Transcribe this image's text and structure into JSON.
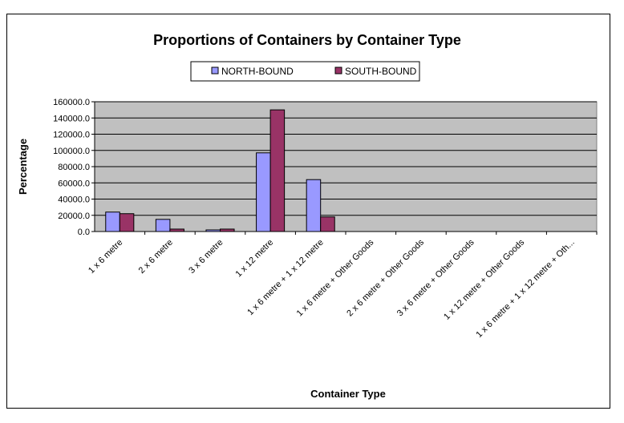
{
  "chart_data": {
    "type": "bar",
    "title": "Proportions of Containers by Container Type",
    "xlabel": "Container Type",
    "ylabel": "Percentage",
    "ylim": [
      0,
      160000
    ],
    "yticks": [
      "0.0",
      "20000.0",
      "40000.0",
      "60000.0",
      "80000.0",
      "100000.0",
      "120000.0",
      "140000.0",
      "160000.0"
    ],
    "categories": [
      "1 x 6 metre",
      "2 x 6 metre",
      "3 x 6 metre",
      "1 x 12 metre",
      "1 x 6 metre + 1 x 12 metre",
      "1 x 6 metre + Other Goods",
      "2 x 6 metre + Other Goods",
      "3 x 6 metre + Other Goods",
      "1 x 12 metre + Other Goods",
      "1 x 6 metre + 1 x 12 metre + Oth..."
    ],
    "series": [
      {
        "name": "NORTH-BOUND",
        "color": "#9999ff",
        "values": [
          24000,
          15000,
          2000,
          97000,
          64000,
          0,
          0,
          0,
          0,
          0
        ]
      },
      {
        "name": "SOUTH-BOUND",
        "color": "#993366",
        "values": [
          22000,
          3000,
          3000,
          150000,
          18000,
          0,
          0,
          0,
          0,
          0
        ]
      }
    ],
    "legend_position": "top",
    "grid": true,
    "plot_background": "#c0c0c0"
  }
}
